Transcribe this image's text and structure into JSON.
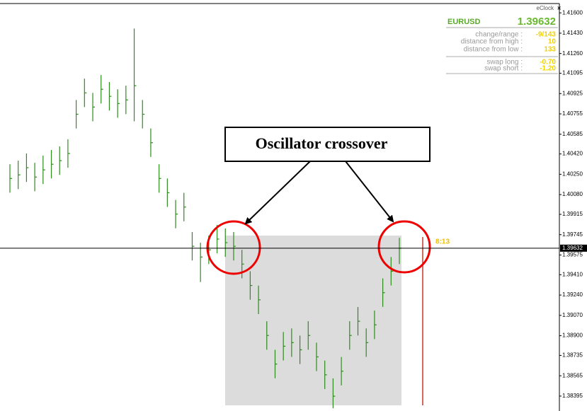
{
  "chart_data": {
    "type": "ohlc",
    "symbol": "EURUSD",
    "current_price": 1.39632,
    "countdown": "8:13",
    "annotation": "Oscillator crossover",
    "panel": {
      "title": "eClock",
      "rows": [
        {
          "label": "change/range :",
          "value": "-9/143"
        },
        {
          "label": "distance from high :",
          "value": "10"
        },
        {
          "label": "distance from low :",
          "value": "133"
        },
        {
          "label": "swap long :",
          "value": "-0.70"
        },
        {
          "label": "swap short :",
          "value": "-1.20"
        }
      ]
    },
    "color": "#2e8b1e",
    "high": [
      1.40334,
      1.40364,
      1.40424,
      1.40346,
      1.40406,
      1.40453,
      1.40483,
      1.40543,
      1.40871,
      1.4105,
      1.40931,
      1.4108,
      1.41021,
      1.40961,
      1.40991,
      1.41469,
      1.40871,
      1.40633,
      1.40334,
      1.40215,
      1.40036,
      1.40095,
      1.39767,
      1.39678,
      1.39737,
      1.39827,
      1.39797,
      1.39767,
      1.39618,
      1.39439,
      1.39319,
      1.39021,
      1.38782,
      1.38931,
      1.38961,
      1.38901,
      1.39021,
      1.38842,
      1.38692,
      1.38543,
      1.38722,
      1.39021,
      1.3914,
      1.38961,
      1.3911,
      1.39379,
      1.39558,
      1.39719
    ],
    "low": [
      1.40096,
      1.40126,
      1.40186,
      1.40108,
      1.40168,
      1.40215,
      1.40245,
      1.40305,
      1.40633,
      1.40812,
      1.40693,
      1.40842,
      1.40783,
      1.40723,
      1.40753,
      1.40693,
      1.40633,
      1.40395,
      1.40096,
      1.39977,
      1.39798,
      1.39857,
      1.39529,
      1.39349,
      1.39499,
      1.39589,
      1.39559,
      1.39529,
      1.3938,
      1.39201,
      1.39081,
      1.38783,
      1.38544,
      1.38693,
      1.38723,
      1.38663,
      1.38783,
      1.38604,
      1.38454,
      1.38293,
      1.38484,
      1.38783,
      1.38902,
      1.38723,
      1.38872,
      1.39141,
      1.3932,
      1.39499
    ],
    "close": [
      1.40215,
      1.40245,
      1.40305,
      1.40227,
      1.40287,
      1.40334,
      1.40364,
      1.40424,
      1.40752,
      1.40931,
      1.40812,
      1.40961,
      1.40902,
      1.40842,
      1.40872,
      1.40991,
      1.40752,
      1.40514,
      1.40215,
      1.40096,
      1.39917,
      1.39976,
      1.39648,
      1.39558,
      1.39618,
      1.39708,
      1.39678,
      1.39648,
      1.39499,
      1.3932,
      1.392,
      1.38902,
      1.38663,
      1.38812,
      1.38842,
      1.38782,
      1.38902,
      1.38723,
      1.38573,
      1.38394,
      1.38603,
      1.38902,
      1.39021,
      1.38842,
      1.38991,
      1.3926,
      1.39439,
      1.39632
    ],
    "ylim": [
      1.38288,
      1.41678
    ],
    "yticks": [
      {
        "value": 1.416,
        "label": "1.41600"
      },
      {
        "value": 1.4143,
        "label": "1.41430"
      },
      {
        "value": 1.4126,
        "label": "1.41260"
      },
      1.41095,
      1.40925,
      1.40755,
      1.40585,
      {
        "value": 1.4042,
        "label": "1.40420"
      },
      {
        "value": 1.4025,
        "label": "1.40250"
      },
      {
        "value": 1.4008,
        "label": "1.40080"
      },
      1.39915,
      1.39745,
      1.39575,
      {
        "value": 1.3941,
        "label": "1.39410"
      },
      {
        "value": 1.3924,
        "label": "1.39240"
      },
      {
        "value": 1.3907,
        "label": "1.39070"
      },
      {
        "value": 1.389,
        "label": "1.38900"
      },
      1.38735,
      1.38565,
      1.38395
    ]
  }
}
